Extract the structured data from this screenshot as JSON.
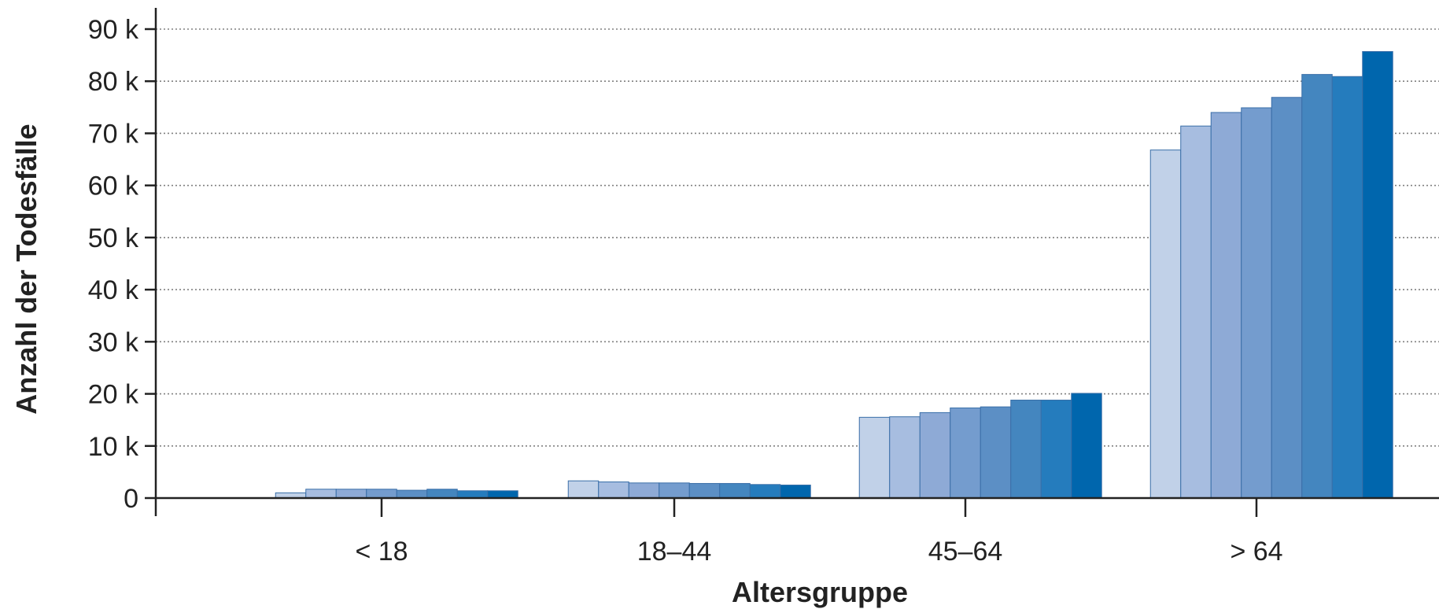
{
  "chart_data": {
    "type": "bar",
    "title": "",
    "xlabel": "Altersgruppe",
    "ylabel": "Anzahl der Todesfälle",
    "ylim": [
      0,
      90000
    ],
    "yticks": [
      {
        "value": 0,
        "label": "0"
      },
      {
        "value": 10000,
        "label": "10 k"
      },
      {
        "value": 20000,
        "label": "20 k"
      },
      {
        "value": 30000,
        "label": "30 k"
      },
      {
        "value": 40000,
        "label": "40 k"
      },
      {
        "value": 50000,
        "label": "50 k"
      },
      {
        "value": 60000,
        "label": "60 k"
      },
      {
        "value": 70000,
        "label": "70 k"
      },
      {
        "value": 80000,
        "label": "80 k"
      },
      {
        "value": 90000,
        "label": "90 k"
      }
    ],
    "grid": true,
    "legend": "none",
    "categories": [
      "< 18",
      "18–44",
      "45–64",
      "> 64"
    ],
    "colors": [
      "#c1d1e8",
      "#a7bde0",
      "#8eaad6",
      "#749cce",
      "#5c8fc5",
      "#4486bf",
      "#257cbd",
      "#0066ad"
    ],
    "series": [
      {
        "values": [
          1000,
          3300,
          15500,
          66800
        ]
      },
      {
        "values": [
          1700,
          3100,
          15600,
          71400
        ]
      },
      {
        "values": [
          1700,
          2900,
          16400,
          74000
        ]
      },
      {
        "values": [
          1700,
          2900,
          17300,
          74900
        ]
      },
      {
        "values": [
          1500,
          2800,
          17500,
          76900
        ]
      },
      {
        "values": [
          1700,
          2800,
          18800,
          81300
        ]
      },
      {
        "values": [
          1400,
          2600,
          18800,
          80900
        ]
      },
      {
        "values": [
          1400,
          2500,
          20100,
          85700
        ]
      }
    ]
  }
}
